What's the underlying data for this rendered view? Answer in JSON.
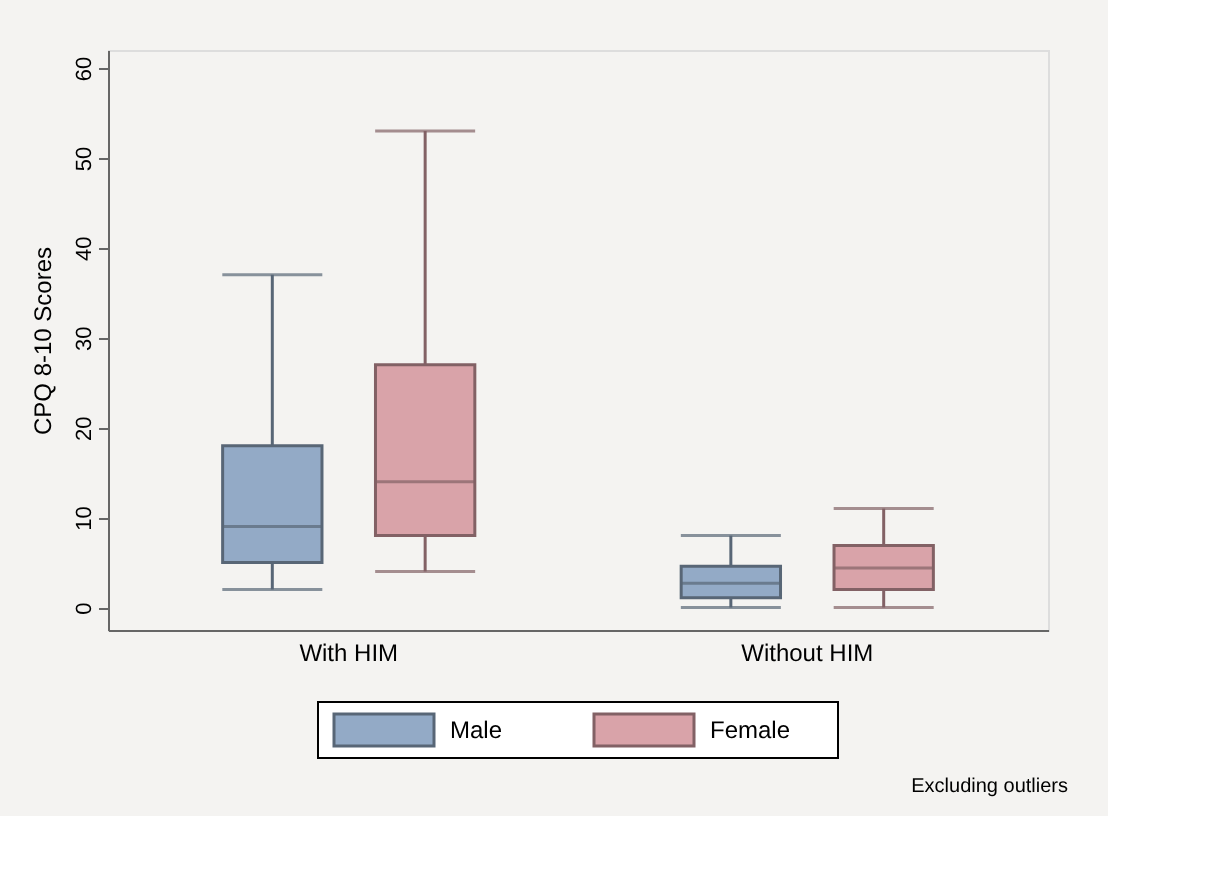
{
  "chart_data": {
    "type": "box",
    "ylabel": "CPQ 8-10  Scores",
    "categories": [
      "With HIM",
      "Without HIM"
    ],
    "series": [
      {
        "name": "Male",
        "color": "#93aac6",
        "boxes": [
          {
            "low": 2,
            "q1": 5,
            "median": 9,
            "q3": 18,
            "high": 37
          },
          {
            "low": 0,
            "q1": 1.1,
            "median": 2.7,
            "q3": 4.6,
            "high": 8
          }
        ]
      },
      {
        "name": "Female",
        "color": "#d9a3a9",
        "boxes": [
          {
            "low": 4,
            "q1": 8,
            "median": 14,
            "q3": 27,
            "high": 53
          },
          {
            "low": 0,
            "q1": 2,
            "median": 4.4,
            "q3": 6.9,
            "high": 11
          }
        ]
      }
    ],
    "ylim": [
      -2.5,
      62
    ],
    "yticks": [
      0,
      10,
      20,
      30,
      40,
      50,
      60
    ],
    "grid": false,
    "legend": "bottom",
    "annotations": [
      "Excluding outliers"
    ]
  }
}
